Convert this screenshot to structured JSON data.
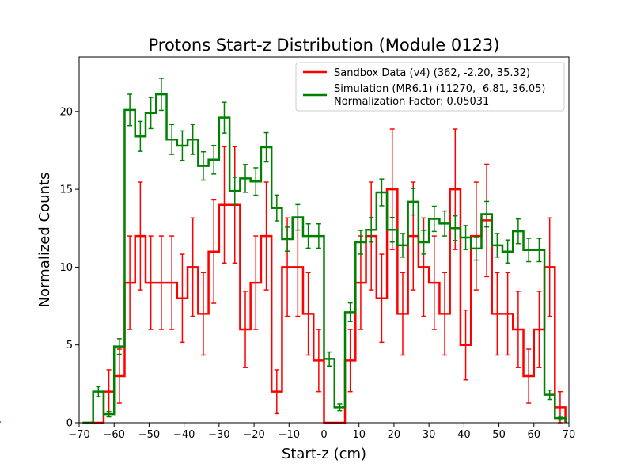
{
  "chart_data": {
    "type": "line",
    "style": "step-histogram-with-error-bars",
    "title": "Protons Start-z Distribution (Module 0123)",
    "xlabel": "Start-z (cm)",
    "ylabel": "Normalized Counts",
    "xlim": [
      -70,
      70
    ],
    "ylim": [
      0,
      23.5
    ],
    "xticks": [
      -70,
      -60,
      -50,
      -40,
      -30,
      -20,
      -10,
      0,
      10,
      20,
      30,
      40,
      50,
      60,
      70
    ],
    "xtick_labels": [
      "−70",
      "−60",
      "−50",
      "−40",
      "−30",
      "−20",
      "−10",
      "0",
      "10",
      "20",
      "30",
      "40",
      "50",
      "60",
      "70"
    ],
    "yticks": [
      0,
      5,
      10,
      15,
      20
    ],
    "ytick_labels": [
      "0",
      "5",
      "10",
      "15",
      "20"
    ],
    "grid": false,
    "legend_position": "top-right",
    "bin_edges": [
      -69,
      -66,
      -63,
      -60,
      -57,
      -54,
      -51,
      -48,
      -45,
      -42,
      -39,
      -36,
      -33,
      -30,
      -27,
      -24,
      -21,
      -18,
      -15,
      -12,
      -9,
      -6,
      -3,
      0,
      3,
      6,
      9,
      12,
      15,
      18,
      21,
      24,
      27,
      30,
      33,
      36,
      39,
      42,
      45,
      48,
      51,
      54,
      57,
      60,
      63,
      66,
      69
    ],
    "series": [
      {
        "name": "Sandbox Data (v4) (362, -2.20, 35.32)",
        "color": "#ff0000",
        "values": [
          0,
          0,
          2,
          3,
          9,
          12,
          9,
          9,
          9,
          8,
          10,
          7,
          11,
          14,
          14,
          6,
          9,
          12,
          2,
          10,
          10,
          7,
          4,
          0,
          0,
          4,
          9,
          12,
          8,
          15,
          7,
          12,
          10,
          9,
          7,
          15,
          5,
          12,
          13,
          7,
          7,
          6,
          3,
          6,
          10,
          1,
          0
        ],
        "errors": [
          0,
          0,
          1.41,
          1.73,
          3.0,
          3.46,
          3.0,
          3.0,
          3.0,
          2.83,
          3.16,
          2.65,
          3.32,
          3.74,
          3.74,
          2.45,
          3.0,
          3.46,
          1.41,
          3.16,
          3.16,
          2.65,
          2.0,
          0,
          0,
          2.0,
          3.0,
          3.46,
          2.83,
          3.87,
          2.65,
          3.46,
          3.16,
          3.0,
          2.65,
          3.87,
          2.24,
          3.46,
          3.61,
          2.65,
          2.65,
          2.45,
          1.73,
          2.45,
          3.16,
          1.0,
          0
        ]
      },
      {
        "name": "Simulation (MR6.1) (11270, -6.81, 36.05)",
        "color": "#008000",
        "values": [
          0,
          2.0,
          0.55,
          4.9,
          20.1,
          18.4,
          19.9,
          21.1,
          18.2,
          17.8,
          18.2,
          16.5,
          16.9,
          19.6,
          14.9,
          15.7,
          15.5,
          17.7,
          13.8,
          11.8,
          13.2,
          12.0,
          12.0,
          4.1,
          1.0,
          7.1,
          11.6,
          12.4,
          14.8,
          12.4,
          11.4,
          14.2,
          11.6,
          13.1,
          12.8,
          12.5,
          11.9,
          11.2,
          13.4,
          11.4,
          11.0,
          12.3,
          11.1,
          11.1,
          1.8,
          0.3,
          0.05
        ],
        "errors": [
          0,
          0.32,
          0.17,
          0.5,
          1.01,
          0.96,
          1.0,
          1.03,
          0.96,
          0.95,
          0.96,
          0.91,
          0.92,
          0.99,
          0.87,
          0.89,
          0.88,
          0.94,
          0.83,
          0.77,
          0.82,
          0.78,
          0.78,
          0.45,
          0.22,
          0.6,
          0.76,
          0.79,
          0.86,
          0.79,
          0.76,
          0.85,
          0.76,
          0.81,
          0.8,
          0.79,
          0.77,
          0.75,
          0.82,
          0.76,
          0.74,
          0.79,
          0.75,
          0.75,
          0.3,
          0.12,
          0.05
        ]
      }
    ],
    "legend_note": "Normalization Factor: 0.05031"
  }
}
